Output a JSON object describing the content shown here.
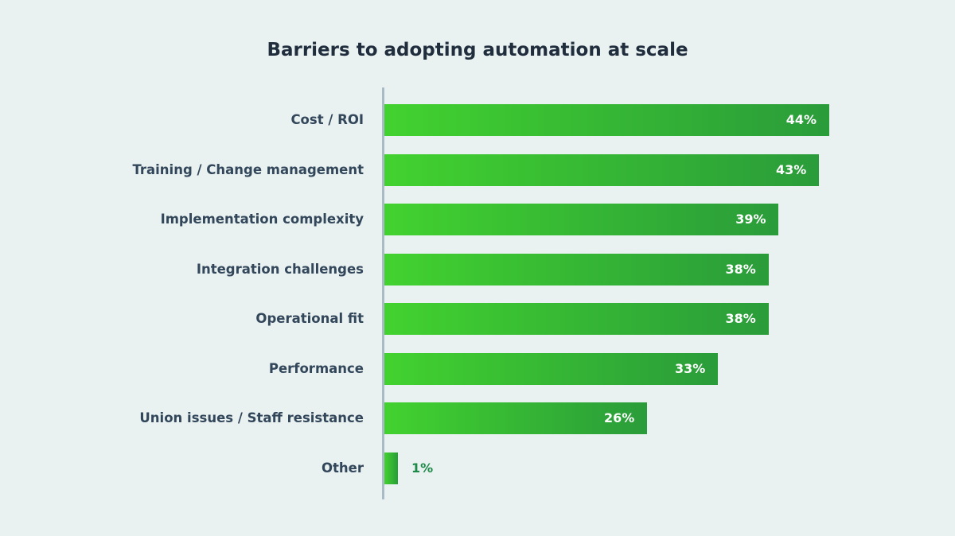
{
  "chart_data": {
    "type": "bar",
    "orientation": "horizontal",
    "title": "Barriers to adopting automation at scale",
    "categories": [
      "Cost / ROI",
      "Training / Change management",
      "Implementation complexity",
      "Integration challenges",
      "Operational fit",
      "Performance",
      "Union issues / Staff resistance",
      "Other"
    ],
    "values": [
      44,
      43,
      39,
      38,
      38,
      33,
      26,
      1
    ],
    "value_labels": [
      "44%",
      "43%",
      "39%",
      "38%",
      "38%",
      "33%",
      "26%",
      "1%"
    ],
    "unit": "%",
    "grid": false,
    "legend": "none",
    "colors": {
      "bar_start": "#42d22f",
      "bar_end": "#2a9c3a",
      "background": "#e9f1f1",
      "outside_label": "#1e8a48"
    }
  }
}
